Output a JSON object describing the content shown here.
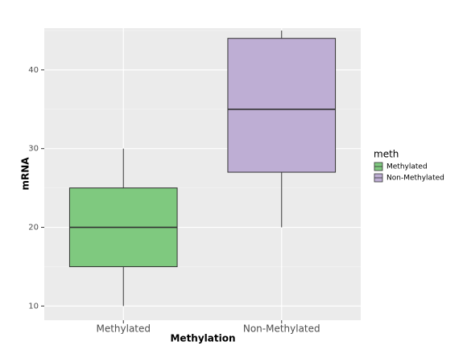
{
  "chart_data": {
    "type": "box",
    "x_label": "Methylation",
    "y_label": "mRNA",
    "categories": [
      "Methylated",
      "Non-Methylated"
    ],
    "colors": [
      "#7fc97f",
      "#beaed4"
    ],
    "boxes": [
      {
        "min": 10,
        "q1": 15,
        "median": 20,
        "q3": 25,
        "max": 30
      },
      {
        "min": 20,
        "q1": 27,
        "median": 35,
        "q3": 44,
        "max": 45
      }
    ],
    "ylim": [
      8.2,
      45.3
    ],
    "yticks": [
      10,
      20,
      30,
      40
    ],
    "minor_yticks": [
      15,
      25,
      35,
      45
    ],
    "grid": true,
    "legend_title": "meth",
    "legend_position": "right"
  }
}
